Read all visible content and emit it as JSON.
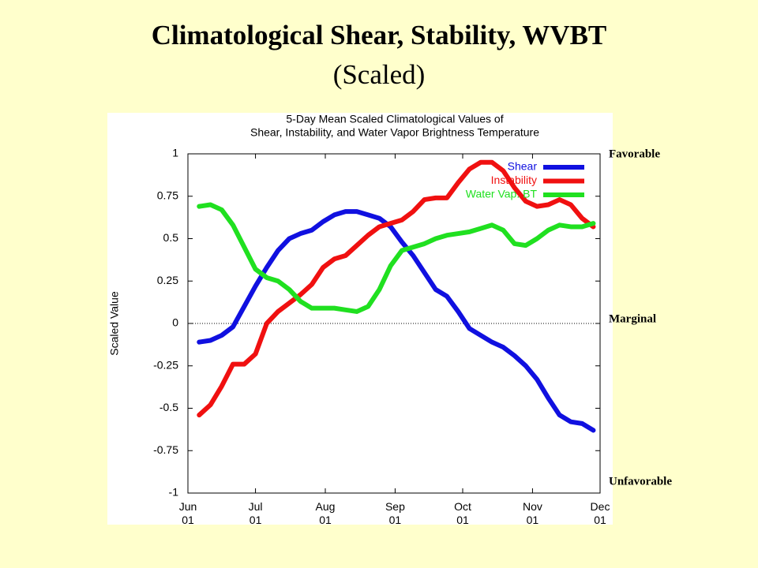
{
  "chart_data": {
    "type": "line",
    "slide_title": "Climatological Shear, Stability, WVBT",
    "slide_subtitle": "(Scaled)",
    "title_lines": [
      "5-Day Mean Scaled Climatological Values of",
      "Shear, Instability, and Water Vapor Brightness Temperature"
    ],
    "ylabel": "Scaled Value",
    "annotations": [
      "Favorable",
      "Marginal",
      "Unfavorable"
    ],
    "x": [
      5,
      10,
      15,
      20,
      25,
      30,
      35,
      40,
      45,
      50,
      55,
      60,
      65,
      70,
      75,
      80,
      85,
      90,
      95,
      100,
      105,
      110,
      115,
      120,
      125,
      130,
      135,
      140,
      145,
      150,
      155,
      160,
      165,
      170,
      175,
      180
    ],
    "xlim": [
      0,
      183
    ],
    "xticks": [
      {
        "value": 0,
        "label": "Jun 01"
      },
      {
        "value": 30,
        "label": "Jul 01"
      },
      {
        "value": 61,
        "label": "Aug 01"
      },
      {
        "value": 92,
        "label": "Sep 01"
      },
      {
        "value": 122,
        "label": "Oct 01"
      },
      {
        "value": 153,
        "label": "Nov 01"
      },
      {
        "value": 183,
        "label": "Dec 01"
      }
    ],
    "ylim": [
      -1,
      1
    ],
    "yticks": [
      -1,
      -0.75,
      -0.5,
      -0.25,
      0,
      0.25,
      0.5,
      0.75,
      1
    ],
    "legend": "upper right",
    "series": [
      {
        "name": "Shear",
        "color": "#1010e0",
        "values": [
          -0.11,
          -0.1,
          -0.07,
          -0.02,
          0.1,
          0.22,
          0.33,
          0.43,
          0.5,
          0.53,
          0.55,
          0.6,
          0.64,
          0.66,
          0.66,
          0.64,
          0.62,
          0.57,
          0.48,
          0.4,
          0.3,
          0.2,
          0.16,
          0.07,
          -0.03,
          -0.07,
          -0.11,
          -0.14,
          -0.19,
          -0.25,
          -0.33,
          -0.44,
          -0.54,
          -0.58,
          -0.59,
          -0.63
        ]
      },
      {
        "name": "Instability",
        "color": "#f01010",
        "values": [
          -0.54,
          -0.48,
          -0.37,
          -0.24,
          -0.24,
          -0.18,
          0.0,
          0.07,
          0.12,
          0.17,
          0.23,
          0.33,
          0.38,
          0.4,
          0.46,
          0.52,
          0.57,
          0.59,
          0.61,
          0.66,
          0.73,
          0.74,
          0.74,
          0.83,
          0.91,
          0.95,
          0.95,
          0.9,
          0.8,
          0.72,
          0.69,
          0.7,
          0.73,
          0.7,
          0.62,
          0.57
        ]
      },
      {
        "name": "Water Vap. BT",
        "color": "#20e020",
        "values": [
          0.69,
          0.7,
          0.67,
          0.58,
          0.45,
          0.32,
          0.27,
          0.25,
          0.2,
          0.13,
          0.09,
          0.09,
          0.09,
          0.08,
          0.07,
          0.1,
          0.2,
          0.34,
          0.43,
          0.45,
          0.47,
          0.5,
          0.52,
          0.53,
          0.54,
          0.56,
          0.58,
          0.55,
          0.47,
          0.46,
          0.5,
          0.55,
          0.58,
          0.57,
          0.57,
          0.59
        ]
      }
    ]
  }
}
